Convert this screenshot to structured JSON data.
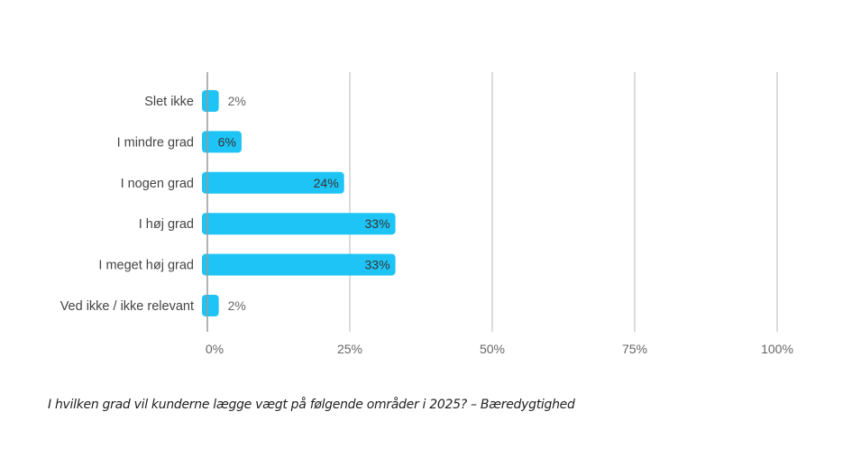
{
  "chart_data": {
    "type": "bar",
    "orientation": "horizontal",
    "categories": [
      "Slet ikke",
      "I mindre grad",
      "I nogen grad",
      "I høj grad",
      "I meget høj grad",
      "Ved ikke / ikke relevant"
    ],
    "values": [
      2,
      6,
      24,
      33,
      33,
      2
    ],
    "data_labels": [
      "2%",
      "6%",
      "24%",
      "33%",
      "33%",
      "2%"
    ],
    "xlim": [
      0,
      100
    ],
    "x_ticks": [
      0,
      25,
      50,
      75,
      100
    ],
    "x_tick_labels": [
      "0%",
      "25%",
      "50%",
      "75%",
      "100%"
    ],
    "grid": true,
    "bar_color": "#1EC4F5",
    "title": "",
    "xlabel": "",
    "ylabel": ""
  },
  "caption": "I hvilken grad vil kunderne lægge vægt på følgende områder i 2025? – Bæredygtighed"
}
